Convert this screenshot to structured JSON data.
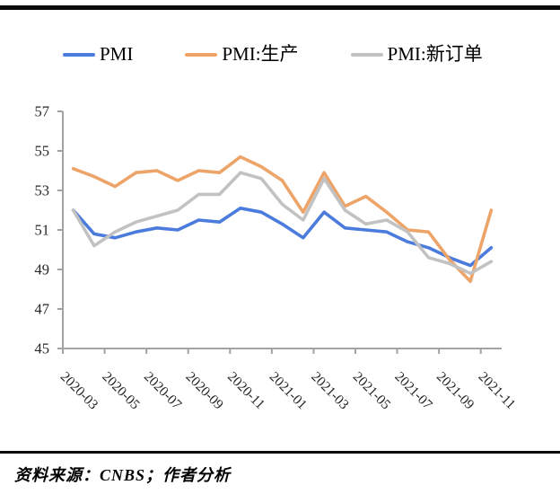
{
  "header": {
    "top_rule_color": "#0a0a0a"
  },
  "legend": {
    "items": [
      {
        "label": "PMI",
        "color": "#4b7cdd"
      },
      {
        "label": "PMI:生产",
        "color": "#eda469"
      },
      {
        "label": "PMI:新订单",
        "color": "#c2c2c2"
      }
    ]
  },
  "chart_data": {
    "type": "line",
    "title": "",
    "xlabel": "",
    "ylabel": "",
    "x": [
      "2020-03",
      "2020-04",
      "2020-05",
      "2020-06",
      "2020-07",
      "2020-08",
      "2020-09",
      "2020-10",
      "2020-11",
      "2020-12",
      "2021-01",
      "2021-02",
      "2021-03",
      "2021-04",
      "2021-05",
      "2021-06",
      "2021-07",
      "2021-08",
      "2021-09",
      "2021-10",
      "2021-11"
    ],
    "x_tick_labels": [
      "2020-03",
      "2020-05",
      "2020-07",
      "2020-09",
      "2020-11",
      "2021-01",
      "2021-03",
      "2021-05",
      "2021-07",
      "2021-09",
      "2021-11"
    ],
    "series": [
      {
        "name": "PMI",
        "color": "#4b7cdd",
        "values": [
          52.0,
          50.8,
          50.6,
          50.9,
          51.1,
          51.0,
          51.5,
          51.4,
          52.1,
          51.9,
          51.3,
          50.6,
          51.9,
          51.1,
          51.0,
          50.9,
          50.4,
          50.1,
          49.6,
          49.2,
          50.1
        ]
      },
      {
        "name": "PMI:生产",
        "color": "#eda469",
        "values": [
          54.1,
          53.7,
          53.2,
          53.9,
          54.0,
          53.5,
          54.0,
          53.9,
          54.7,
          54.2,
          53.5,
          51.9,
          53.9,
          52.2,
          52.7,
          51.9,
          51.0,
          50.9,
          49.5,
          48.4,
          52.0
        ]
      },
      {
        "name": "PMI:新订单",
        "color": "#c2c2c2",
        "values": [
          52.0,
          50.2,
          50.9,
          51.4,
          51.7,
          52.0,
          52.8,
          52.8,
          53.9,
          53.6,
          52.3,
          51.5,
          53.6,
          52.0,
          51.3,
          51.5,
          50.9,
          49.6,
          49.3,
          48.8,
          49.4
        ]
      }
    ],
    "ylim": [
      45,
      57
    ],
    "ytick_step": 2,
    "grid": false,
    "legend_position": "top",
    "axis_color": "#a3a3a3",
    "tick_label_color": "#262626"
  },
  "footer": {
    "source_text": "资料来源：CNBS；作者分析",
    "rule_color": "#0a0a0a"
  }
}
